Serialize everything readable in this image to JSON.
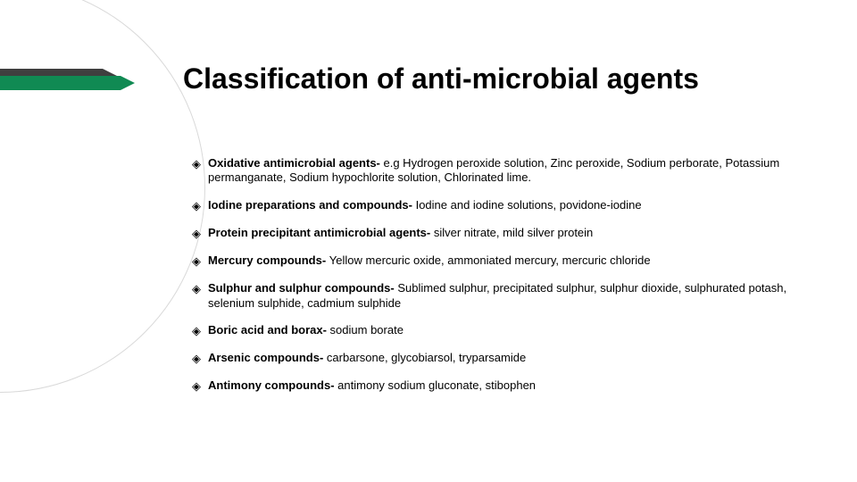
{
  "slide": {
    "title": "Classification of anti-microbial agents",
    "title_color": "#000000",
    "title_fontsize": 32,
    "body_fontsize": 13,
    "accent_color": "#108a53",
    "shadow_color": "#3f3f3f",
    "arc_border_color": "#d9d9d9",
    "background": "#ffffff",
    "bullet_glyph": "◈",
    "items": [
      {
        "bold": "Oxidative antimicrobial agents- ",
        "rest": "e.g Hydrogen peroxide solution, Zinc peroxide, Sodium perborate, Potassium permanganate, Sodium hypochlorite solution, Chlorinated lime."
      },
      {
        "bold": "Iodine preparations and compounds- ",
        "rest": "Iodine and iodine solutions, povidone-iodine"
      },
      {
        "bold": "Protein precipitant antimicrobial agents- ",
        "rest": "silver nitrate, mild silver protein"
      },
      {
        "bold": "Mercury compounds- ",
        "rest": "Yellow mercuric oxide, ammoniated mercury, mercuric chloride"
      },
      {
        "bold": "Sulphur and sulphur compounds- ",
        "rest": "Sublimed sulphur, precipitated sulphur, sulphur dioxide, sulphurated potash, selenium sulphide, cadmium sulphide"
      },
      {
        "bold": "Boric acid and borax- ",
        "rest": "sodium borate"
      },
      {
        "bold": "Arsenic compounds- ",
        "rest": "carbarsone, glycobiarsol, tryparsamide"
      },
      {
        "bold": "Antimony compounds- ",
        "rest": "antimony sodium gluconate, stibophen"
      }
    ]
  }
}
